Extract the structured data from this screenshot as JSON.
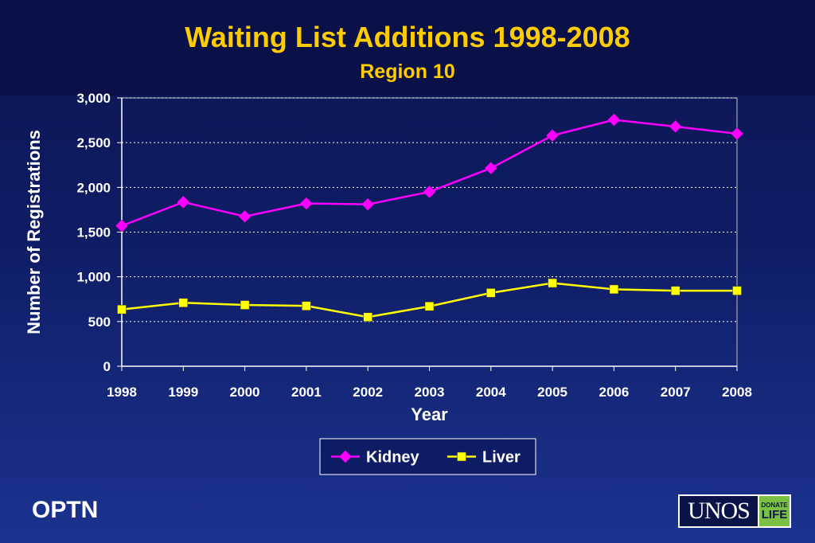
{
  "chart_data": {
    "type": "line",
    "title": "Waiting List Additions 1998-2008",
    "subtitle": "Region 10",
    "xlabel": "Year",
    "ylabel": "Number of Registrations",
    "categories": [
      "1998",
      "1999",
      "2000",
      "2001",
      "2002",
      "2003",
      "2004",
      "2005",
      "2006",
      "2007",
      "2008"
    ],
    "ylim": [
      0,
      3000
    ],
    "yticks": [
      0,
      500,
      1000,
      1500,
      2000,
      2500,
      3000
    ],
    "ytick_labels": [
      "0",
      "500",
      "1,000",
      "1,500",
      "2,000",
      "2,500",
      "3,000"
    ],
    "grid": true,
    "legend_position": "bottom-center",
    "series": [
      {
        "name": "Kidney",
        "color": "#ff00ff",
        "marker": "diamond",
        "values": [
          1570,
          1835,
          1675,
          1820,
          1810,
          1950,
          2215,
          2580,
          2755,
          2680,
          2600
        ]
      },
      {
        "name": "Liver",
        "color": "#ffff00",
        "marker": "square",
        "values": [
          635,
          710,
          685,
          675,
          550,
          670,
          820,
          930,
          860,
          845,
          845
        ]
      }
    ]
  },
  "footer": {
    "label": "OPTN"
  },
  "logo": {
    "text": "UNOS",
    "badge_line1": "DONATE",
    "badge_line2": "LIFE"
  }
}
